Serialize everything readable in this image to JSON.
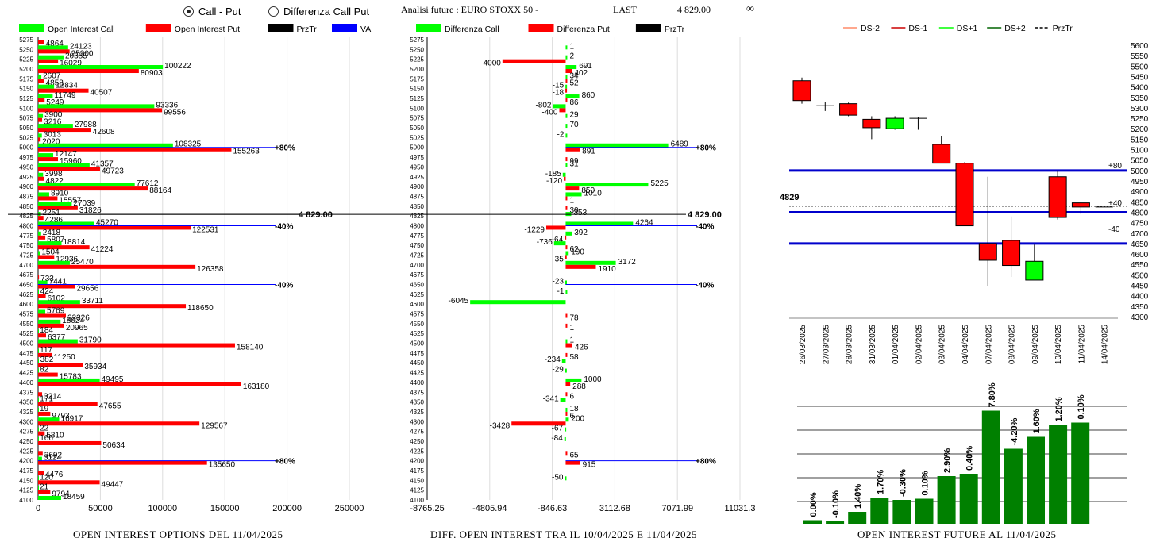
{
  "header": {
    "radio_call_put": "Call - Put",
    "radio_diff": "Differenza Call Put",
    "title": "Analisi future : EURO STOXX 50 -",
    "last_label": "LAST",
    "last_value": "4 829.00",
    "infinity": "∞"
  },
  "captions": {
    "left": "OPEN INTEREST OPTIONS DEL 11/04/2025",
    "middle": "DIFF. OPEN INTEREST TRA IL 10/04/2025 E 11/04/2025",
    "right": "OPEN INTEREST FUTURE AL 11/04/2025"
  },
  "colors": {
    "call": "#00ff00",
    "put": "#ff0000",
    "prztr": "#000000",
    "va": "#0000ff",
    "bull": "#00ff00",
    "bear": "#ff0000",
    "oi_bar": "#008000"
  },
  "chart_data": [
    {
      "type": "bar",
      "name": "open-interest-options",
      "legend": [
        "Open Interest Call",
        "Open Interest Put",
        "PrzTr",
        "VA"
      ],
      "strikes": [
        5275,
        5250,
        5225,
        5200,
        5175,
        5150,
        5125,
        5100,
        5075,
        5050,
        5025,
        5000,
        4975,
        4950,
        4925,
        4900,
        4875,
        4850,
        4825,
        4800,
        4775,
        4750,
        4725,
        4700,
        4675,
        4650,
        4625,
        4600,
        4575,
        4550,
        4525,
        4500,
        4475,
        4450,
        4425,
        4400,
        4375,
        4350,
        4325,
        4300,
        4275,
        4250,
        4225,
        4200,
        4175,
        4150,
        4125,
        4100
      ],
      "call": [
        0,
        24123,
        20385,
        100222,
        2607,
        12834,
        11749,
        93336,
        3900,
        27988,
        3013,
        108325,
        12147,
        41357,
        3998,
        77612,
        8910,
        27039,
        2251,
        45270,
        2418,
        18814,
        1504,
        25470,
        0,
        7441,
        424,
        33711,
        5769,
        18024,
        184,
        31790,
        117,
        382,
        82,
        49495,
        0,
        171,
        19,
        16917,
        22,
        166,
        0,
        3124,
        0,
        120,
        21,
        18459
      ],
      "put": [
        4864,
        25300,
        16029,
        80903,
        4858,
        40507,
        5249,
        99556,
        3216,
        42608,
        2020,
        155263,
        15960,
        49723,
        4822,
        88164,
        15557,
        31826,
        4286,
        122531,
        5807,
        41224,
        12936,
        126358,
        733,
        29656,
        6102,
        118650,
        22326,
        20965,
        6377,
        158140,
        11250,
        35934,
        15783,
        163180,
        3214,
        47655,
        9793,
        129567,
        5310,
        50634,
        3692,
        135650,
        4476,
        49447,
        9794,
        0
      ],
      "va_marks": [
        {
          "strike": 5000,
          "label": "80%"
        },
        {
          "strike": 4800,
          "label": "40%"
        },
        {
          "strike": 4650,
          "label": "40%"
        },
        {
          "strike": 4200,
          "label": "80%"
        }
      ],
      "przTr": {
        "strike": 4825,
        "label": "4 829.00"
      },
      "xticks": [
        0,
        50000,
        100000,
        150000,
        200000,
        250000
      ],
      "xlim": [
        0,
        250000
      ]
    },
    {
      "type": "bar",
      "name": "diff-open-interest",
      "legend": [
        "Differenza Call",
        "Differenza Put",
        "PrzTr"
      ],
      "strikes": [
        5275,
        5250,
        5225,
        5200,
        5175,
        5150,
        5125,
        5100,
        5075,
        5050,
        5025,
        5000,
        4975,
        4950,
        4925,
        4900,
        4875,
        4850,
        4825,
        4800,
        4775,
        4750,
        4725,
        4700,
        4675,
        4650,
        4625,
        4600,
        4575,
        4550,
        4525,
        4500,
        4475,
        4450,
        4425,
        4400,
        4375,
        4350,
        4325,
        4300,
        4275,
        4250,
        4225,
        4200,
        4175,
        4150,
        4125,
        4100
      ],
      "call": [
        0,
        1,
        2,
        691,
        34,
        -15,
        860,
        -802,
        29,
        70,
        -2,
        6489,
        0,
        31,
        -185,
        5225,
        1010,
        0,
        353,
        4264,
        392,
        -736,
        190,
        3172,
        0,
        -23,
        -1,
        -6045,
        0,
        0,
        0,
        1,
        0,
        -234,
        -29,
        1000,
        0,
        -341,
        18,
        200,
        -67,
        -84,
        0,
        0,
        0,
        -50,
        0,
        0
      ],
      "put": [
        0,
        0,
        -4000,
        402,
        52,
        -18,
        86,
        -400,
        0,
        0,
        0,
        891,
        99,
        0,
        -120,
        850,
        1,
        30,
        0,
        -1229,
        -64,
        62,
        -35,
        1910,
        0,
        0,
        0,
        0,
        78,
        1,
        0,
        426,
        58,
        0,
        0,
        288,
        6,
        0,
        6,
        -3428,
        0,
        0,
        65,
        915,
        0,
        0,
        0,
        0
      ],
      "va_marks": [
        {
          "strike": 5000,
          "label": "80%"
        },
        {
          "strike": 4800,
          "label": "40%"
        },
        {
          "strike": 4650,
          "label": "40%"
        },
        {
          "strike": 4200,
          "label": "80%"
        }
      ],
      "przTr": {
        "strike": 4825,
        "label": "4 829.00"
      },
      "xticks": [
        "-8765.25",
        "-4805.94",
        "-846.63",
        "3112.68",
        "7071.99",
        "11031.3"
      ],
      "xlim": [
        -8765.25,
        11031.3
      ]
    },
    {
      "type": "candlestick",
      "name": "future-price",
      "legend": [
        "DS-2",
        "DS-1",
        "DS+1",
        "DS+2",
        "PrzTr"
      ],
      "dates": [
        "26/03/2025",
        "27/03/2025",
        "28/03/2025",
        "31/03/2025",
        "01/04/2025",
        "02/04/2025",
        "03/04/2025",
        "04/04/2025",
        "07/04/2025",
        "08/04/2025",
        "09/04/2025",
        "10/04/2025",
        "11/04/2025",
        "14/04/2025"
      ],
      "candles": [
        {
          "o": 5430,
          "h": 5445,
          "l": 5320,
          "c": 5335
        },
        {
          "o": 5310,
          "h": 5330,
          "l": 5285,
          "c": 5310
        },
        {
          "o": 5320,
          "h": 5325,
          "l": 5260,
          "c": 5265
        },
        {
          "o": 5245,
          "h": 5260,
          "l": 5150,
          "c": 5205
        },
        {
          "o": 5200,
          "h": 5260,
          "l": 5195,
          "c": 5250
        },
        {
          "o": 5250,
          "h": 5255,
          "l": 5195,
          "c": 5250
        },
        {
          "o": 5125,
          "h": 5165,
          "l": 5035,
          "c": 5035
        },
        {
          "o": 5035,
          "h": 5040,
          "l": 4735,
          "c": 4735
        },
        {
          "o": 4650,
          "h": 4970,
          "l": 4445,
          "c": 4570
        },
        {
          "o": 4665,
          "h": 4780,
          "l": 4490,
          "c": 4545
        },
        {
          "o": 4475,
          "h": 4645,
          "l": 4475,
          "c": 4565
        },
        {
          "o": 4970,
          "h": 5000,
          "l": 4765,
          "c": 4775
        },
        {
          "o": 4845,
          "h": 4850,
          "l": 4790,
          "c": 4825
        },
        {
          "o": 4825,
          "h": 4825,
          "l": 4825,
          "c": 4825
        }
      ],
      "hlines": [
        5000,
        4800,
        4650
      ],
      "przTr": 4829,
      "przTr_label": "4829",
      "right_labels": [
        "+80",
        "+40",
        "-40"
      ],
      "yticks": [
        5600,
        5550,
        5500,
        5450,
        5400,
        5350,
        5300,
        5250,
        5200,
        5150,
        5100,
        5050,
        5000,
        4950,
        4900,
        4850,
        4800,
        4750,
        4700,
        4650,
        4600,
        4550,
        4500,
        4450,
        4400,
        4350,
        4300
      ],
      "ylim": [
        4300,
        5600
      ]
    },
    {
      "type": "bar",
      "name": "open-interest-future",
      "labels": [
        "0.00%",
        "-0.10%",
        "1.40%",
        "1.70%",
        "-0.30%",
        "0.10%",
        "2.90%",
        "0.40%",
        "7.80%",
        "-4.20%",
        "1.60%",
        "1.20%",
        "0.10%"
      ],
      "values": [
        3,
        2,
        10,
        22,
        20,
        21,
        40,
        42,
        95,
        63,
        73,
        83,
        85
      ]
    }
  ]
}
